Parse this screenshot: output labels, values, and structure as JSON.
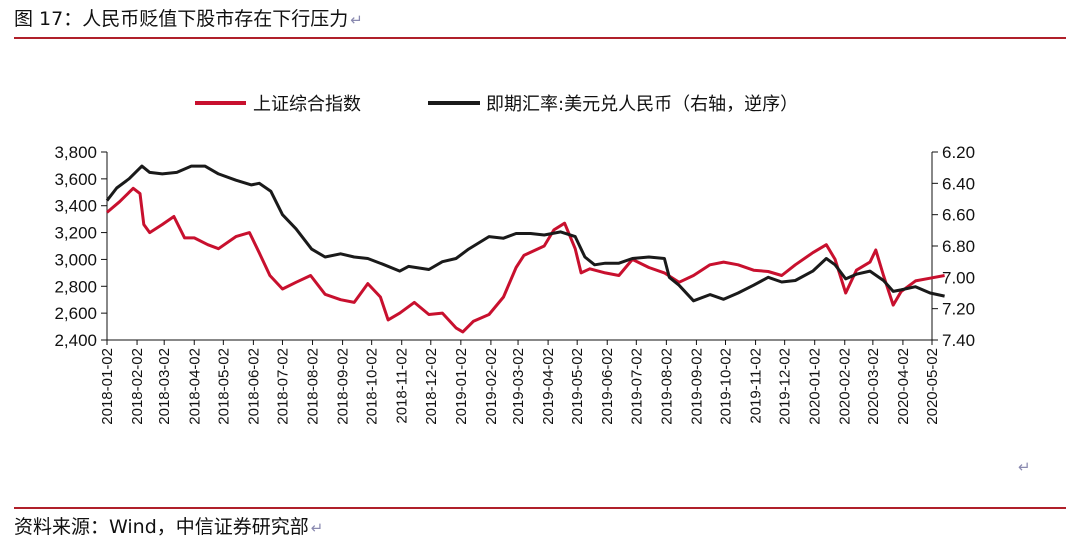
{
  "figure": {
    "title": "图 17：人民币贬值下股市存在下行压力",
    "source": "资料来源：Wind，中信证券研究部",
    "paragraph_mark": "↵"
  },
  "colors": {
    "shanghai": "#c8102e",
    "fx": "#1a1a1a",
    "rule": "#b0202a"
  },
  "chart_data": {
    "type": "line",
    "title": "",
    "x_tick_labels": [
      "2018-01-02",
      "2018-02-02",
      "2018-03-02",
      "2018-04-02",
      "2018-05-02",
      "2018-06-02",
      "2018-07-02",
      "2018-08-02",
      "2018-09-02",
      "2018-10-02",
      "2018-11-02",
      "2018-12-02",
      "2019-01-02",
      "2019-02-02",
      "2019-03-02",
      "2019-04-02",
      "2019-05-02",
      "2019-06-02",
      "2019-07-02",
      "2019-08-02",
      "2019-09-02",
      "2019-10-02",
      "2019-11-02",
      "2019-12-02",
      "2020-01-02",
      "2020-02-02",
      "2020-03-02",
      "2020-04-02",
      "2020-05-02"
    ],
    "y_left": {
      "min": 2400,
      "max": 3800,
      "ticks": [
        "2,400",
        "2,600",
        "2,800",
        "3,000",
        "3,200",
        "3,400",
        "3,600",
        "3,800"
      ]
    },
    "y_right": {
      "min": 6.2,
      "max": 7.4,
      "inverted": true,
      "ticks": [
        "6.20",
        "6.40",
        "6.60",
        "6.80",
        "7.00",
        "7.20",
        "7.40"
      ]
    },
    "legend_position": "top-center",
    "series": [
      {
        "name": "上证综合指数",
        "axis": "left",
        "x": [
          "2018-01-02",
          "2018-01-15",
          "2018-01-29",
          "2018-02-05",
          "2018-02-09",
          "2018-02-15",
          "2018-02-28",
          "2018-03-12",
          "2018-03-23",
          "2018-04-02",
          "2018-04-16",
          "2018-04-27",
          "2018-05-15",
          "2018-05-29",
          "2018-06-08",
          "2018-06-19",
          "2018-07-02",
          "2018-07-16",
          "2018-07-31",
          "2018-08-15",
          "2018-08-31",
          "2018-09-14",
          "2018-09-28",
          "2018-10-11",
          "2018-10-19",
          "2018-10-31",
          "2018-11-15",
          "2018-11-30",
          "2018-12-14",
          "2018-12-28",
          "2019-01-04",
          "2019-01-15",
          "2019-01-31",
          "2019-02-15",
          "2019-02-28",
          "2019-03-08",
          "2019-03-29",
          "2019-04-08",
          "2019-04-19",
          "2019-04-30",
          "2019-05-06",
          "2019-05-15",
          "2019-05-31",
          "2019-06-14",
          "2019-06-28",
          "2019-07-15",
          "2019-07-31",
          "2019-08-15",
          "2019-08-30",
          "2019-09-16",
          "2019-09-30",
          "2019-10-15",
          "2019-10-31",
          "2019-11-15",
          "2019-11-29",
          "2019-12-13",
          "2019-12-31",
          "2020-01-14",
          "2020-01-23",
          "2020-02-03",
          "2020-02-14",
          "2020-02-28",
          "2020-03-05",
          "2020-03-13",
          "2020-03-23",
          "2020-03-31",
          "2020-04-15",
          "2020-04-30",
          "2020-05-15"
        ],
        "values": [
          3350,
          3430,
          3530,
          3490,
          3260,
          3200,
          3260,
          3320,
          3160,
          3160,
          3110,
          3080,
          3170,
          3200,
          3050,
          2880,
          2780,
          2830,
          2880,
          2740,
          2700,
          2680,
          2820,
          2720,
          2550,
          2600,
          2680,
          2590,
          2600,
          2490,
          2460,
          2540,
          2590,
          2720,
          2940,
          3030,
          3100,
          3220,
          3270,
          3080,
          2900,
          2930,
          2900,
          2880,
          3000,
          2940,
          2900,
          2830,
          2880,
          2960,
          2980,
          2960,
          2920,
          2910,
          2880,
          2960,
          3050,
          3110,
          3000,
          2750,
          2920,
          2980,
          3070,
          2880,
          2660,
          2760,
          2840,
          2860,
          2880
        ]
      },
      {
        "name": "即期汇率:美元兑人民币（右轴，逆序）",
        "axis": "right",
        "x": [
          "2018-01-02",
          "2018-01-12",
          "2018-01-25",
          "2018-02-07",
          "2018-02-15",
          "2018-02-28",
          "2018-03-15",
          "2018-03-30",
          "2018-04-13",
          "2018-04-27",
          "2018-05-15",
          "2018-05-31",
          "2018-06-08",
          "2018-06-20",
          "2018-07-02",
          "2018-07-16",
          "2018-08-01",
          "2018-08-15",
          "2018-08-31",
          "2018-09-14",
          "2018-09-28",
          "2018-10-15",
          "2018-10-31",
          "2018-11-09",
          "2018-11-30",
          "2018-12-14",
          "2018-12-28",
          "2019-01-10",
          "2019-01-31",
          "2019-02-15",
          "2019-02-28",
          "2019-03-15",
          "2019-03-29",
          "2019-04-15",
          "2019-04-30",
          "2019-05-10",
          "2019-05-20",
          "2019-05-31",
          "2019-06-14",
          "2019-06-28",
          "2019-07-15",
          "2019-07-31",
          "2019-08-05",
          "2019-08-15",
          "2019-08-30",
          "2019-09-16",
          "2019-09-30",
          "2019-10-15",
          "2019-10-31",
          "2019-11-15",
          "2019-11-29",
          "2019-12-13",
          "2019-12-31",
          "2020-01-14",
          "2020-01-23",
          "2020-02-03",
          "2020-02-14",
          "2020-02-28",
          "2020-03-13",
          "2020-03-23",
          "2020-03-31",
          "2020-04-15",
          "2020-04-30",
          "2020-05-15"
        ],
        "values": [
          6.51,
          6.43,
          6.37,
          6.29,
          6.33,
          6.34,
          6.33,
          6.29,
          6.29,
          6.34,
          6.38,
          6.41,
          6.4,
          6.45,
          6.6,
          6.69,
          6.82,
          6.87,
          6.85,
          6.87,
          6.88,
          6.92,
          6.96,
          6.93,
          6.95,
          6.9,
          6.88,
          6.82,
          6.74,
          6.75,
          6.72,
          6.72,
          6.73,
          6.71,
          6.74,
          6.87,
          6.92,
          6.91,
          6.91,
          6.88,
          6.87,
          6.88,
          7.0,
          7.05,
          7.15,
          7.11,
          7.14,
          7.1,
          7.05,
          7.0,
          7.03,
          7.02,
          6.96,
          6.88,
          6.92,
          7.01,
          6.98,
          6.96,
          7.02,
          7.09,
          7.08,
          7.06,
          7.1,
          7.12
        ]
      }
    ]
  }
}
